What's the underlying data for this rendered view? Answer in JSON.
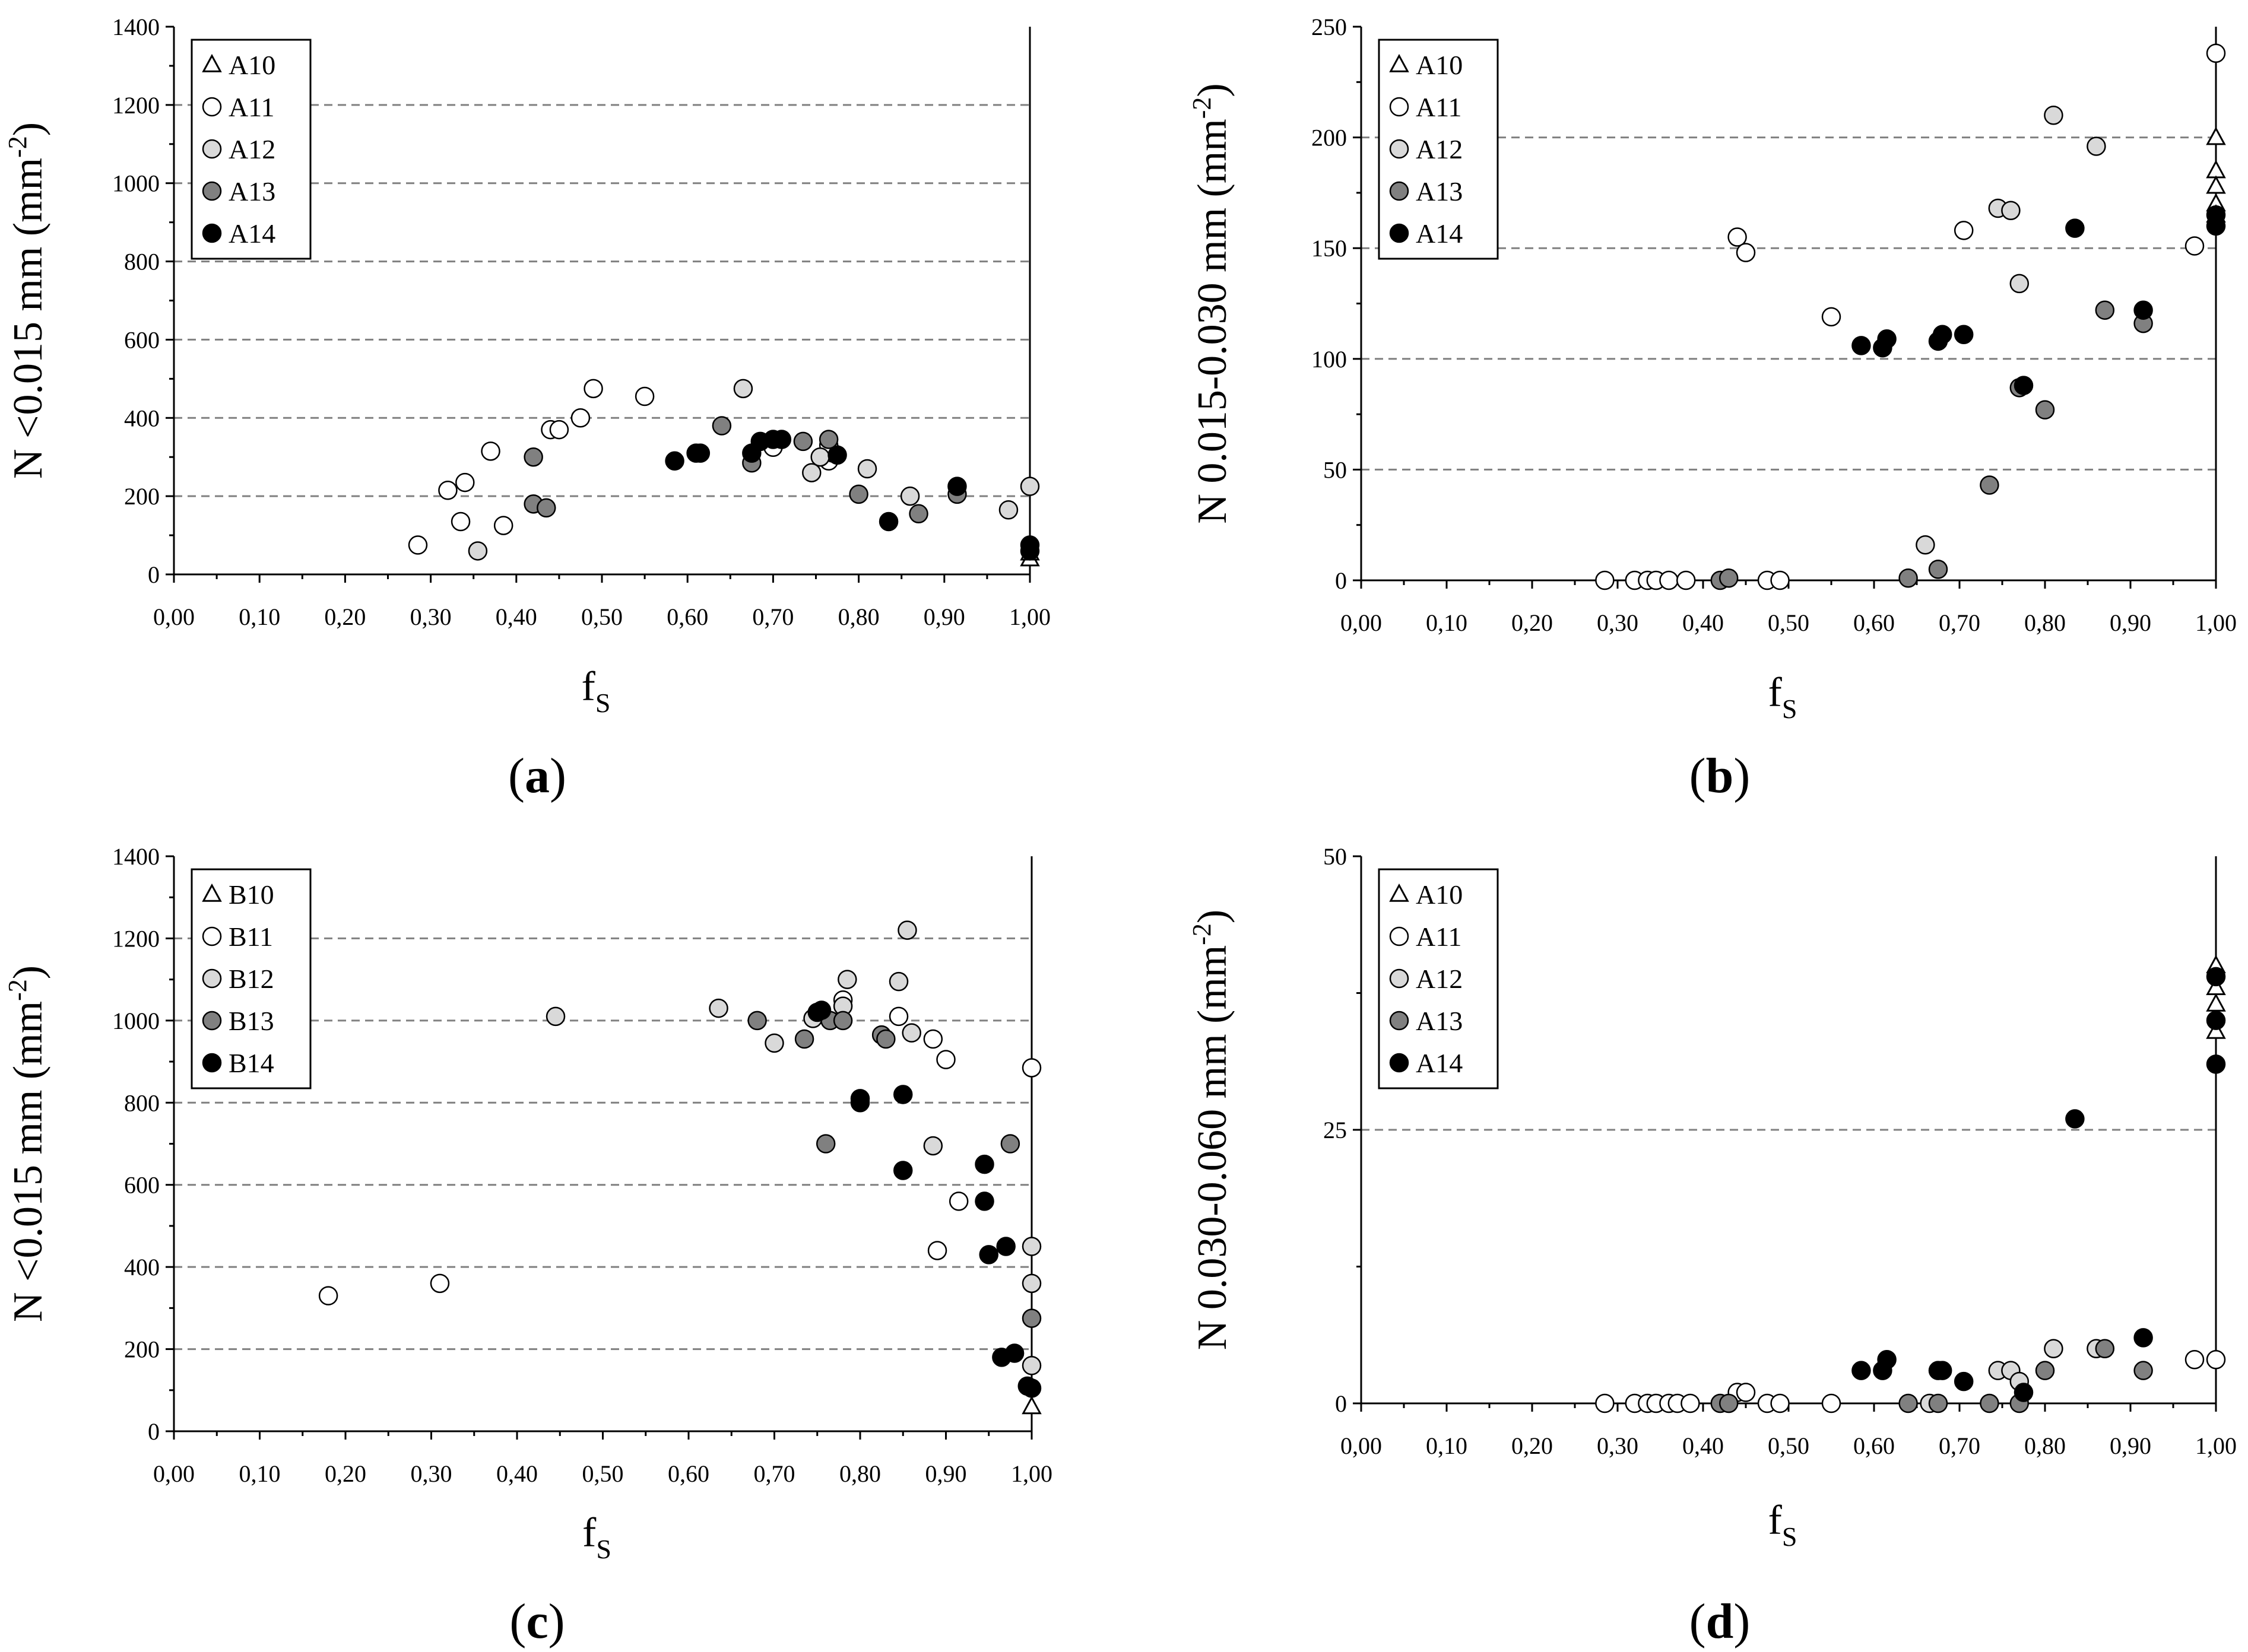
{
  "figure": {
    "colors": {
      "s10": "#ffffff",
      "s11": "#ffffff",
      "s12": "#d9d9d9",
      "s13": "#808080",
      "s14": "#000000",
      "grid": "#808080",
      "axis": "#000000"
    },
    "x_tick_labels": [
      "0,00",
      "0,10",
      "0,20",
      "0,30",
      "0,40",
      "0,50",
      "0,60",
      "0,70",
      "0,80",
      "0,90",
      "1,00"
    ]
  },
  "chart_data": [
    {
      "id": "a",
      "type": "scatter",
      "panel_label": "(a)",
      "panel_letter": "a",
      "ylabel_pre": "N <0.015 mm (mm",
      "ylabel_sup": "-2",
      "ylabel_post": ")",
      "xlabel_main": "f",
      "xlabel_sub": "S",
      "xlim": [
        0,
        1
      ],
      "ylim": [
        0,
        1400
      ],
      "y_ticks": [
        0,
        200,
        400,
        600,
        800,
        1000,
        1200,
        1400
      ],
      "y_tick_labels": [
        "0",
        "200",
        "400",
        "600",
        "800",
        "1000",
        "1200",
        "1400"
      ],
      "gridlines": [
        200,
        400,
        600,
        800,
        1000,
        1200
      ],
      "legend": [
        "A10",
        "A11",
        "A12",
        "A13",
        "A14"
      ],
      "series": [
        {
          "name": "A10",
          "marker": "triangle",
          "points": [
            [
              1.0,
              40
            ],
            [
              1.0,
              55
            ]
          ]
        },
        {
          "name": "A11",
          "marker": "circle-white",
          "points": [
            [
              0.285,
              75
            ],
            [
              0.32,
              215
            ],
            [
              0.335,
              135
            ],
            [
              0.34,
              235
            ],
            [
              0.37,
              315
            ],
            [
              0.385,
              125
            ],
            [
              0.44,
              370
            ],
            [
              0.45,
              370
            ],
            [
              0.475,
              400
            ],
            [
              0.49,
              475
            ],
            [
              0.55,
              455
            ],
            [
              0.7,
              325
            ],
            [
              0.765,
              290
            ],
            [
              0.77,
              310
            ],
            [
              0.765,
              330
            ]
          ]
        },
        {
          "name": "A12",
          "marker": "circle-lightgray",
          "points": [
            [
              0.355,
              60
            ],
            [
              0.665,
              475
            ],
            [
              0.745,
              260
            ],
            [
              0.755,
              300
            ],
            [
              0.81,
              270
            ],
            [
              0.86,
              200
            ],
            [
              0.975,
              165
            ],
            [
              1.0,
              225
            ]
          ]
        },
        {
          "name": "A13",
          "marker": "circle-gray",
          "points": [
            [
              0.42,
              300
            ],
            [
              0.42,
              180
            ],
            [
              0.435,
              170
            ],
            [
              0.64,
              380
            ],
            [
              0.675,
              285
            ],
            [
              0.735,
              340
            ],
            [
              0.765,
              345
            ],
            [
              0.8,
              205
            ],
            [
              0.87,
              155
            ],
            [
              0.915,
              205
            ]
          ]
        },
        {
          "name": "A14",
          "marker": "circle-black",
          "points": [
            [
              0.585,
              290
            ],
            [
              0.61,
              310
            ],
            [
              0.615,
              310
            ],
            [
              0.675,
              310
            ],
            [
              0.685,
              340
            ],
            [
              0.7,
              345
            ],
            [
              0.71,
              345
            ],
            [
              0.775,
              305
            ],
            [
              0.835,
              135
            ],
            [
              0.915,
              225
            ],
            [
              1.0,
              75
            ],
            [
              1.0,
              60
            ]
          ]
        }
      ]
    },
    {
      "id": "b",
      "type": "scatter",
      "panel_label": "(b)",
      "panel_letter": "b",
      "ylabel_pre": "N 0.015-0.030 mm (mm",
      "ylabel_sup": "-2",
      "ylabel_post": ")",
      "xlabel_main": "f",
      "xlabel_sub": "S",
      "xlim": [
        0,
        1
      ],
      "ylim": [
        0,
        250
      ],
      "y_ticks": [
        0,
        50,
        100,
        150,
        200,
        250
      ],
      "y_tick_labels": [
        "0",
        "50",
        "100",
        "150",
        "200",
        "250"
      ],
      "gridlines": [
        50,
        100,
        150,
        200
      ],
      "legend": [
        "A10",
        "A11",
        "A12",
        "A13",
        "A14"
      ],
      "series": [
        {
          "name": "A10",
          "marker": "triangle",
          "points": [
            [
              1.0,
              200
            ],
            [
              1.0,
              185
            ],
            [
              1.0,
              178
            ],
            [
              1.0,
              170
            ],
            [
              1.0,
              165
            ]
          ]
        },
        {
          "name": "A11",
          "marker": "circle-white",
          "points": [
            [
              0.285,
              0
            ],
            [
              0.32,
              0
            ],
            [
              0.335,
              0
            ],
            [
              0.345,
              0
            ],
            [
              0.36,
              0
            ],
            [
              0.38,
              0
            ],
            [
              0.475,
              0
            ],
            [
              0.49,
              0
            ],
            [
              0.44,
              155
            ],
            [
              0.45,
              148
            ],
            [
              0.55,
              119
            ],
            [
              0.705,
              158
            ],
            [
              1.0,
              238
            ],
            [
              0.975,
              151
            ]
          ]
        },
        {
          "name": "A12",
          "marker": "circle-lightgray",
          "points": [
            [
              0.66,
              16
            ],
            [
              0.745,
              168
            ],
            [
              0.76,
              167
            ],
            [
              0.77,
              134
            ],
            [
              0.81,
              210
            ],
            [
              0.86,
              196
            ]
          ]
        },
        {
          "name": "A13",
          "marker": "circle-gray",
          "points": [
            [
              0.42,
              0
            ],
            [
              0.43,
              1
            ],
            [
              0.64,
              1
            ],
            [
              0.675,
              5
            ],
            [
              0.735,
              43
            ],
            [
              0.77,
              87
            ],
            [
              0.8,
              77
            ],
            [
              0.87,
              122
            ],
            [
              0.915,
              116
            ]
          ]
        },
        {
          "name": "A14",
          "marker": "circle-black",
          "points": [
            [
              0.585,
              106
            ],
            [
              0.61,
              105
            ],
            [
              0.615,
              109
            ],
            [
              0.675,
              108
            ],
            [
              0.68,
              111
            ],
            [
              0.705,
              111
            ],
            [
              0.775,
              88
            ],
            [
              0.835,
              159
            ],
            [
              0.915,
              122
            ],
            [
              1.0,
              160
            ],
            [
              1.0,
              165
            ]
          ]
        }
      ]
    },
    {
      "id": "c",
      "type": "scatter",
      "panel_label": "(c)",
      "panel_letter": "c",
      "ylabel_pre": "N <0.015 mm (mm",
      "ylabel_sup": "-2",
      "ylabel_post": ")",
      "xlabel_main": "f",
      "xlabel_sub": "S",
      "xlim": [
        0,
        1
      ],
      "ylim": [
        0,
        1400
      ],
      "y_ticks": [
        0,
        200,
        400,
        600,
        800,
        1000,
        1200,
        1400
      ],
      "y_tick_labels": [
        "0",
        "200",
        "400",
        "600",
        "800",
        "1000",
        "1200",
        "1400"
      ],
      "gridlines": [
        200,
        400,
        600,
        800,
        1000,
        1200
      ],
      "legend": [
        "B10",
        "B11",
        "B12",
        "B13",
        "B14"
      ],
      "series": [
        {
          "name": "B10",
          "marker": "triangle",
          "points": [
            [
              1.0,
              60
            ]
          ]
        },
        {
          "name": "B11",
          "marker": "circle-white",
          "points": [
            [
              0.18,
              330
            ],
            [
              0.31,
              360
            ],
            [
              0.78,
              1050
            ],
            [
              0.845,
              1010
            ],
            [
              0.885,
              955
            ],
            [
              0.89,
              440
            ],
            [
              0.9,
              905
            ],
            [
              0.915,
              560
            ],
            [
              1.0,
              885
            ]
          ]
        },
        {
          "name": "B12",
          "marker": "circle-lightgray",
          "points": [
            [
              0.445,
              1010
            ],
            [
              0.635,
              1030
            ],
            [
              0.7,
              945
            ],
            [
              0.745,
              1005
            ],
            [
              0.78,
              1035
            ],
            [
              0.785,
              1100
            ],
            [
              0.845,
              1095
            ],
            [
              0.855,
              1220
            ],
            [
              0.86,
              970
            ],
            [
              0.885,
              695
            ],
            [
              1.0,
              450
            ],
            [
              1.0,
              360
            ],
            [
              1.0,
              160
            ]
          ]
        },
        {
          "name": "B13",
          "marker": "circle-gray",
          "points": [
            [
              0.68,
              1000
            ],
            [
              0.735,
              955
            ],
            [
              0.76,
              700
            ],
            [
              0.765,
              1000
            ],
            [
              0.78,
              1000
            ],
            [
              0.825,
              965
            ],
            [
              0.83,
              955
            ],
            [
              0.975,
              700
            ],
            [
              1.0,
              275
            ]
          ]
        },
        {
          "name": "B14",
          "marker": "circle-black",
          "points": [
            [
              0.75,
              1020
            ],
            [
              0.755,
              1025
            ],
            [
              0.8,
              810
            ],
            [
              0.8,
              800
            ],
            [
              0.85,
              820
            ],
            [
              0.85,
              635
            ],
            [
              0.945,
              650
            ],
            [
              0.945,
              560
            ],
            [
              0.95,
              430
            ],
            [
              0.965,
              180
            ],
            [
              0.97,
              450
            ],
            [
              0.98,
              190
            ],
            [
              0.995,
              110
            ],
            [
              1.0,
              105
            ]
          ]
        }
      ]
    },
    {
      "id": "d",
      "type": "scatter",
      "panel_label": "(d)",
      "panel_letter": "d",
      "ylabel_pre": "N 0.030-0.060 mm (mm",
      "ylabel_sup": "-2",
      "ylabel_post": ")",
      "xlabel_main": "f",
      "xlabel_sub": "S",
      "xlim": [
        0,
        1
      ],
      "ylim": [
        0,
        50
      ],
      "y_ticks": [
        0,
        25,
        50
      ],
      "y_tick_labels": [
        "0",
        "25",
        "50"
      ],
      "gridlines": [
        25
      ],
      "legend": [
        "A10",
        "A11",
        "A12",
        "A13",
        "A14"
      ],
      "series": [
        {
          "name": "A10",
          "marker": "triangle",
          "points": [
            [
              1.0,
              40
            ],
            [
              1.0,
              38
            ],
            [
              1.0,
              36.5
            ],
            [
              1.0,
              34
            ]
          ]
        },
        {
          "name": "A11",
          "marker": "circle-white",
          "points": [
            [
              0.285,
              0
            ],
            [
              0.32,
              0
            ],
            [
              0.335,
              0
            ],
            [
              0.345,
              0
            ],
            [
              0.36,
              0
            ],
            [
              0.37,
              0
            ],
            [
              0.385,
              0
            ],
            [
              0.44,
              1
            ],
            [
              0.45,
              1
            ],
            [
              0.475,
              0
            ],
            [
              0.49,
              0
            ],
            [
              0.55,
              0
            ],
            [
              0.975,
              4
            ],
            [
              1.0,
              4
            ]
          ]
        },
        {
          "name": "A12",
          "marker": "circle-lightgray",
          "points": [
            [
              0.665,
              0
            ],
            [
              0.745,
              3
            ],
            [
              0.76,
              3
            ],
            [
              0.77,
              2
            ],
            [
              0.81,
              5
            ],
            [
              0.86,
              5
            ]
          ]
        },
        {
          "name": "A13",
          "marker": "circle-gray",
          "points": [
            [
              0.42,
              0
            ],
            [
              0.43,
              0
            ],
            [
              0.64,
              0
            ],
            [
              0.675,
              0
            ],
            [
              0.735,
              0
            ],
            [
              0.77,
              0
            ],
            [
              0.8,
              3
            ],
            [
              0.87,
              5
            ],
            [
              0.915,
              3
            ]
          ]
        },
        {
          "name": "A14",
          "marker": "circle-black",
          "points": [
            [
              0.585,
              3
            ],
            [
              0.61,
              3
            ],
            [
              0.615,
              4
            ],
            [
              0.675,
              3
            ],
            [
              0.68,
              3
            ],
            [
              0.705,
              2
            ],
            [
              0.775,
              1
            ],
            [
              0.835,
              26
            ],
            [
              0.915,
              6
            ],
            [
              1.0,
              39
            ],
            [
              1.0,
              35
            ],
            [
              1.0,
              31
            ]
          ]
        }
      ]
    }
  ]
}
